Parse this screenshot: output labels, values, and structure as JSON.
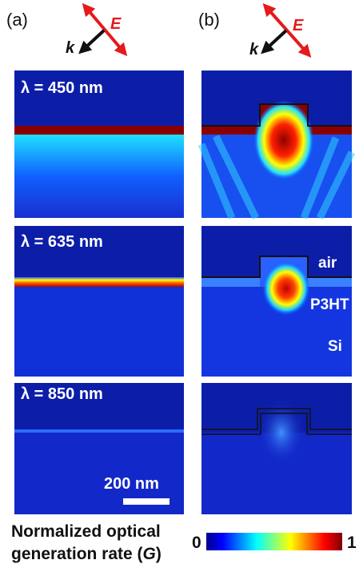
{
  "panels": [
    {
      "label": "(a)",
      "k": "k",
      "E": "E"
    },
    {
      "label": "(b)",
      "k": "k",
      "E": "E"
    }
  ],
  "rows": [
    {
      "wavelength": "λ = 450 nm"
    },
    {
      "wavelength": "λ = 635 nm"
    },
    {
      "wavelength": "λ = 850 nm"
    }
  ],
  "materials": [
    "air",
    "P3HT",
    "Si"
  ],
  "scale_bar": "200 nm",
  "colorbar": {
    "title_line1": "Normalized optical",
    "title_line2": "generation rate (",
    "symbol": "G",
    "close": ")",
    "min": 0,
    "max": 1
  }
}
